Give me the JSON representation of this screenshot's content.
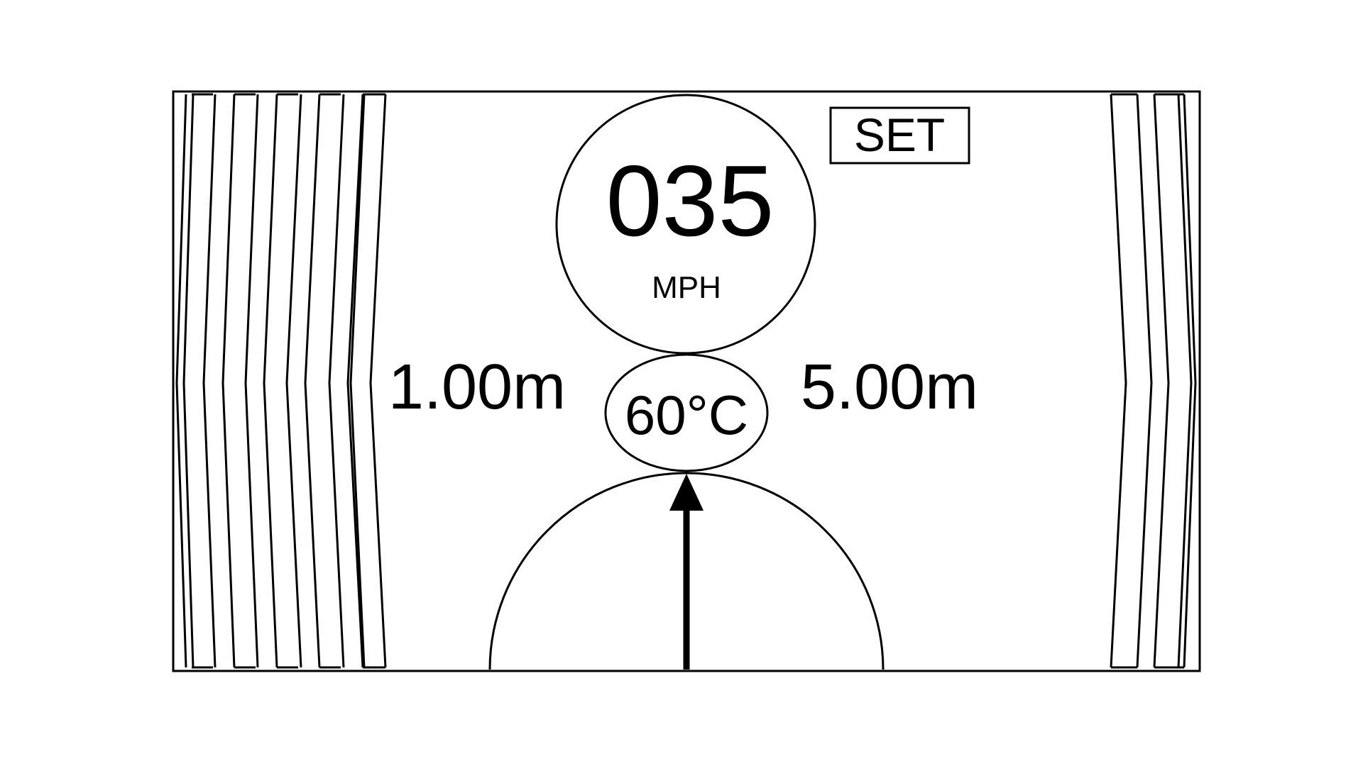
{
  "display": {
    "speed": {
      "value": "035",
      "unit": "MPH"
    },
    "set_badge": {
      "label": "SET"
    },
    "distance_left": "1.00m",
    "distance_right": "5.00m",
    "temperature": "60°C",
    "direction_indicator": {
      "icon": "up-arrow-icon"
    },
    "colors": {
      "line": "#000000",
      "background": "#ffffff"
    }
  }
}
